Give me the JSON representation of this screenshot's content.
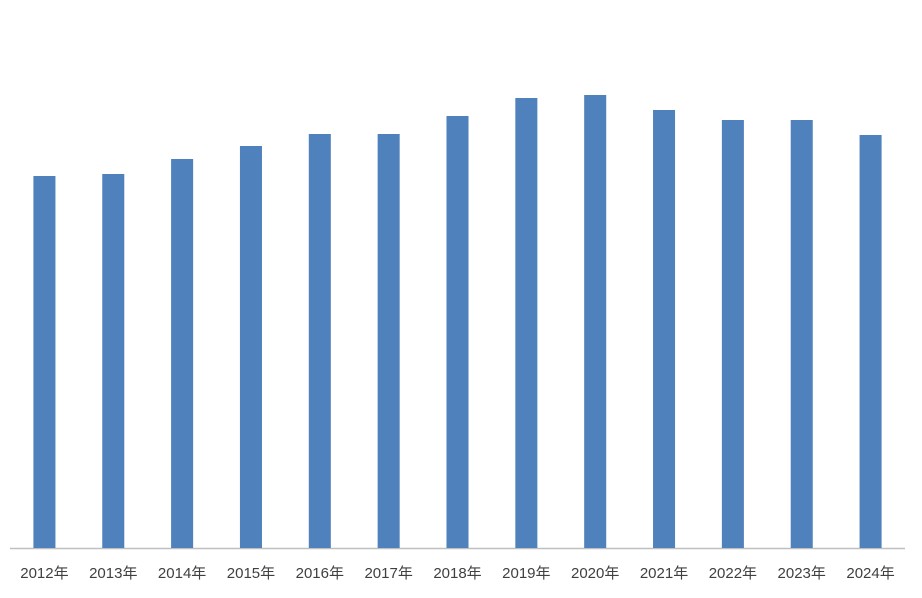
{
  "chart_data": {
    "type": "bar",
    "categories": [
      "2012年",
      "2013年",
      "2014年",
      "2015年",
      "2016年",
      "2017年",
      "2018年",
      "2019年",
      "2020年",
      "2021年",
      "2022年",
      "2023年",
      "2024年"
    ],
    "values": [
      372,
      374,
      389,
      402,
      414,
      414,
      432,
      450,
      453,
      438,
      428,
      428,
      413
    ],
    "color": "#4f81bd",
    "ylim": [
      0,
      500
    ]
  }
}
